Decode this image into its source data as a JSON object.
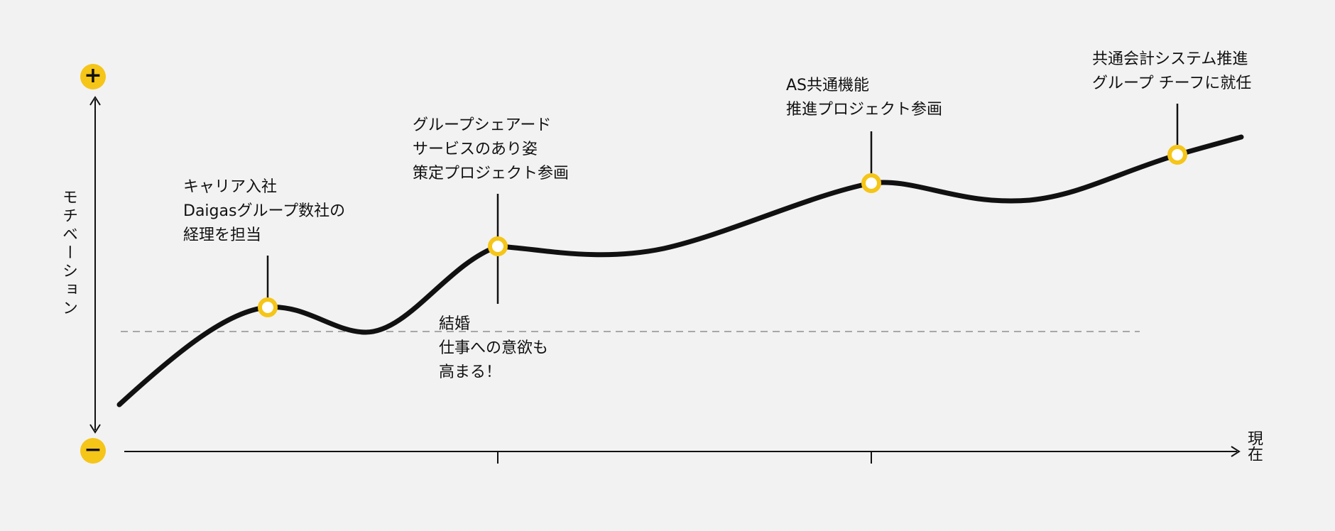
{
  "colors": {
    "background": "#f2f2f2",
    "line": "#111111",
    "accent": "#f5c518",
    "baseline_dash": "#a8a8a8"
  },
  "axes": {
    "y_label": "モチベーション",
    "x_end_label": "現在",
    "plus_icon": "plus-icon",
    "minus_icon": "minus-icon",
    "plus_glyph": "+",
    "minus_glyph": "−"
  },
  "events": [
    {
      "id": "career-join",
      "lines": [
        "キャリア入社",
        "Daigasグループ数社の",
        "経理を担当"
      ]
    },
    {
      "id": "group-shared",
      "lines": [
        "グループシェアード",
        "サービスのあり姿",
        "策定プロジェクト参画"
      ]
    },
    {
      "id": "marriage",
      "lines": [
        "結婚",
        "仕事への意欲も",
        "高まる！"
      ]
    },
    {
      "id": "as-common",
      "lines": [
        "AS共通機能",
        "推進プロジェクト参画"
      ]
    },
    {
      "id": "chief",
      "lines": [
        "共通会計システム推進",
        "グループ チーフに就任"
      ]
    }
  ]
}
